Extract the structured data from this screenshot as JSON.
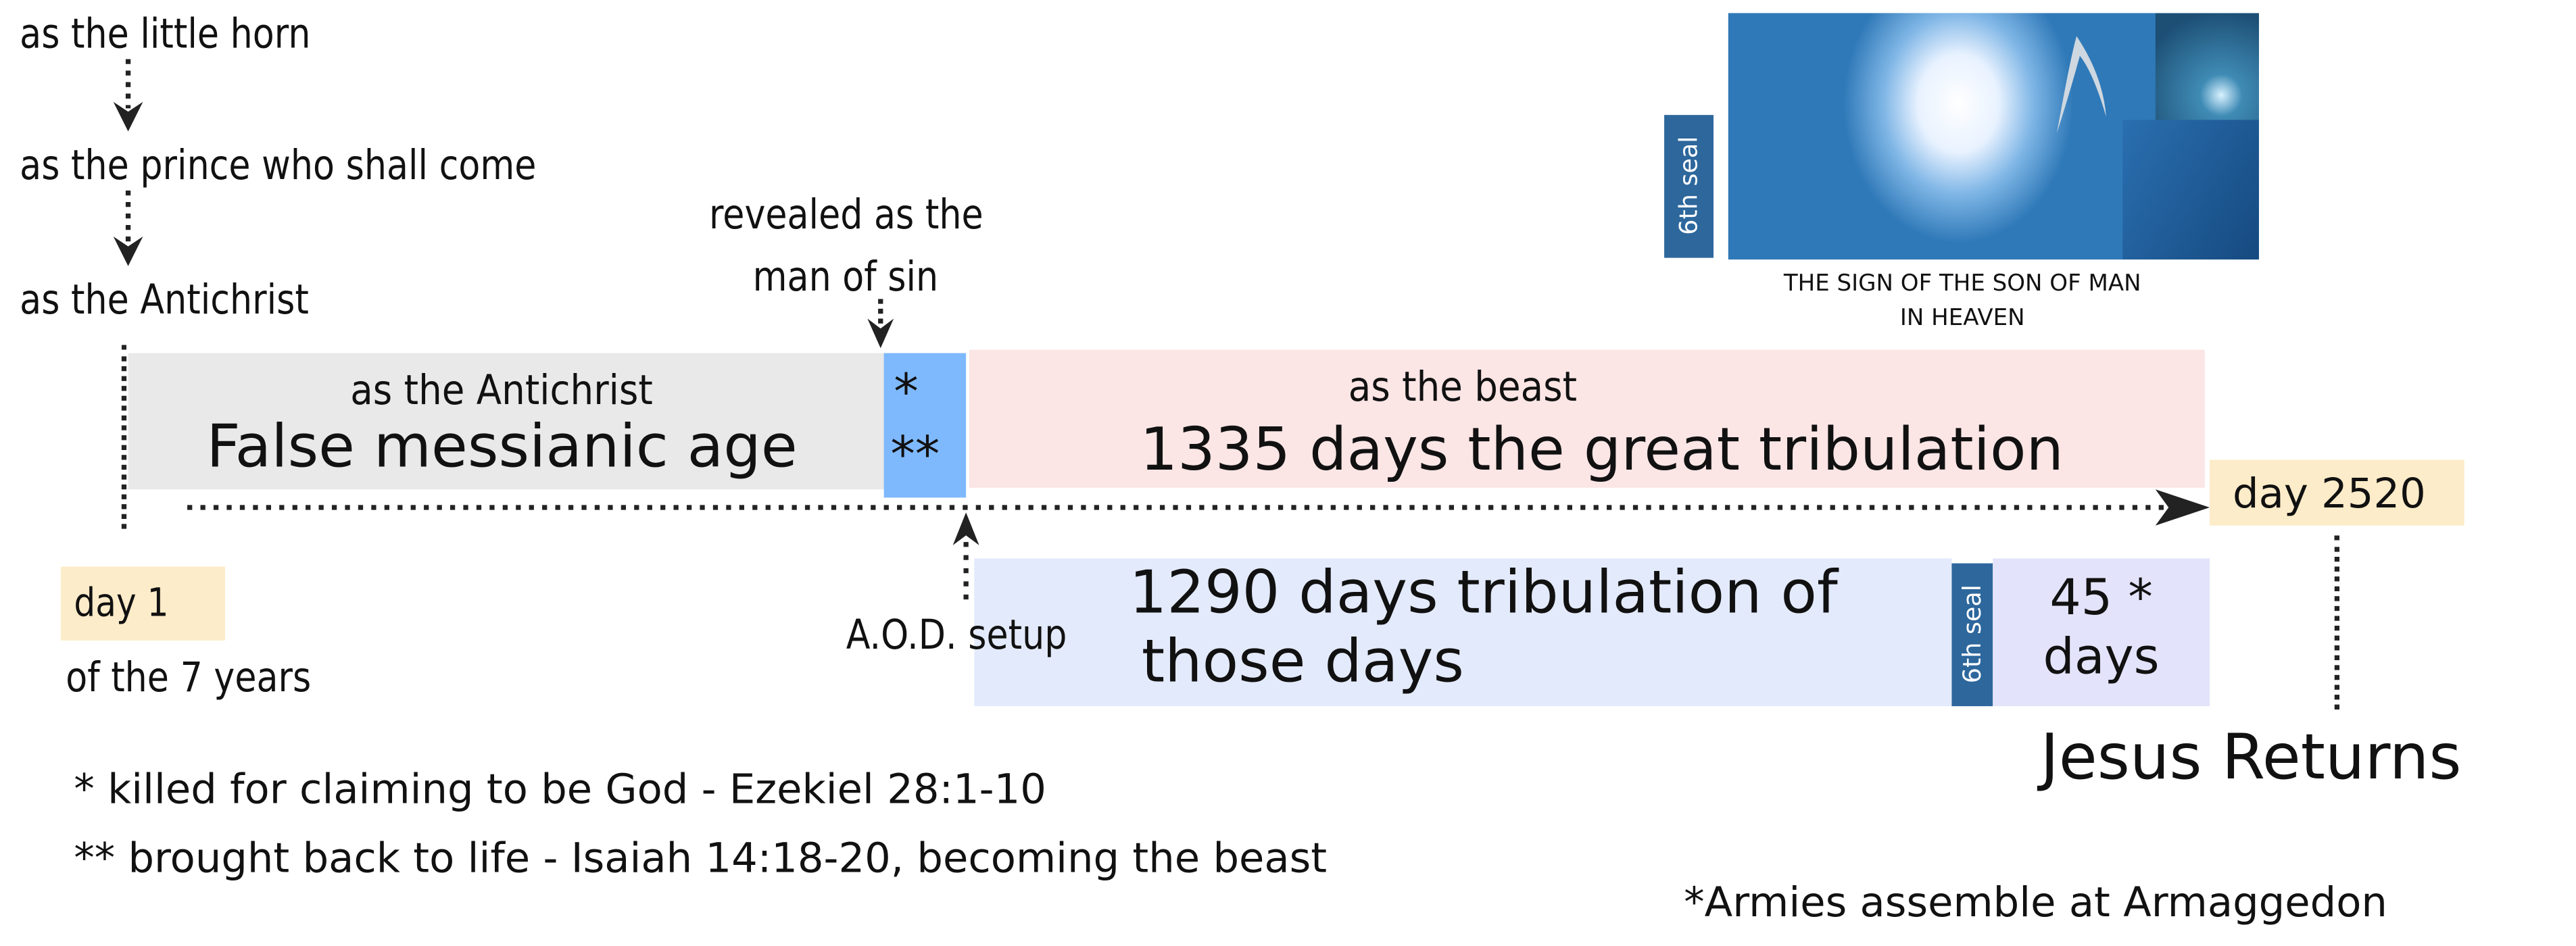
{
  "progression": {
    "step1": "as the little horn",
    "step2": "as the prince who shall come",
    "step3": "as the Antichrist"
  },
  "revealed": {
    "line1": "revealed as the",
    "line2": "man of sin"
  },
  "segments": {
    "antichrist": {
      "subtitle": "as the Antichrist",
      "title": "False messianic age",
      "color": "#e9e9e9"
    },
    "marker": {
      "line1": "*",
      "line2": "**",
      "color": "#7fb9fd"
    },
    "beast": {
      "subtitle": "as the beast",
      "title": "1335 days the great tribulation",
      "color": "#fbe5e5"
    },
    "tribulation": {
      "line1": "1290 days tribulation of",
      "line2": "those days",
      "color": "#e3eafb"
    },
    "seal": {
      "label": "6th seal",
      "color": "#2d679c"
    },
    "final": {
      "line1": "45 *",
      "line2": "days",
      "color": "#e3e3fb"
    }
  },
  "markers": {
    "day1": "day 1",
    "day1_sub": "of the 7 years",
    "aod": "A.O.D. setup",
    "day2520": "day 2520",
    "jesus_returns": "Jesus Returns",
    "day_color": "#fdecc9"
  },
  "sign_image": {
    "seal_label": "6th seal",
    "caption_line1": "THE SIGN OF THE SON OF MAN",
    "caption_line2": "IN HEAVEN"
  },
  "footnotes": {
    "note1": "*  killed for claiming to be God - Ezekiel 28:1-10",
    "note2": "** brought back to life - Isaiah 14:18-20, becoming the beast",
    "note3": "*Armies assemble at Armaggedon"
  }
}
